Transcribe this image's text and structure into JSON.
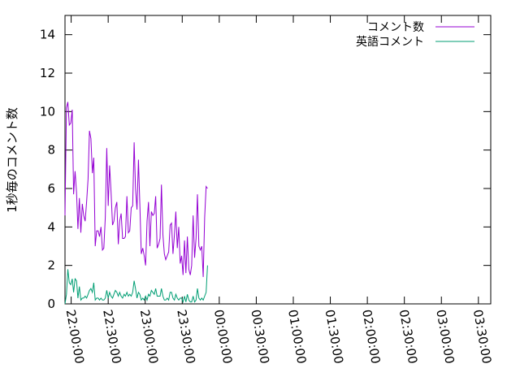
{
  "chart_data": {
    "type": "line",
    "title": "",
    "xlabel": "",
    "ylabel": "1秒毎のコメント数",
    "ylim": [
      0,
      15
    ],
    "yticks": [
      "0",
      "2",
      "4",
      "6",
      "8",
      "10",
      "12",
      "14"
    ],
    "xlim": [
      "21:55:00",
      "03:40:00"
    ],
    "xticks": [
      "22:00:00",
      "22:30:00",
      "23:00:00",
      "23:30:00",
      "00:00:00",
      "00:30:00",
      "01:00:00",
      "01:30:00",
      "02:00:00",
      "02:30:00",
      "03:00:00",
      "03:30:00"
    ],
    "legend_position": "top-right",
    "grid": false,
    "series": [
      {
        "name": "コメント数",
        "color": "#9400d3",
        "points": [
          [
            "21:55:00",
            4.6
          ],
          [
            "21:56:10",
            10.2
          ],
          [
            "21:57:20",
            10.5
          ],
          [
            "21:58:30",
            9.3
          ],
          [
            "21:59:40",
            9.4
          ],
          [
            "22:00:50",
            10.1
          ],
          [
            "22:02:00",
            5.7
          ],
          [
            "22:03:10",
            6.9
          ],
          [
            "22:04:20",
            5.8
          ],
          [
            "22:05:30",
            3.9
          ],
          [
            "22:06:40",
            5.5
          ],
          [
            "22:07:50",
            3.7
          ],
          [
            "22:09:00",
            5.2
          ],
          [
            "22:10:10",
            4.6
          ],
          [
            "22:11:20",
            4.3
          ],
          [
            "22:12:30",
            5.3
          ],
          [
            "22:13:40",
            6.5
          ],
          [
            "22:14:50",
            9.0
          ],
          [
            "22:16:00",
            8.6
          ],
          [
            "22:17:10",
            6.8
          ],
          [
            "22:18:20",
            7.6
          ],
          [
            "22:19:30",
            3.0
          ],
          [
            "22:20:40",
            3.8
          ],
          [
            "22:21:50",
            3.8
          ],
          [
            "22:23:00",
            3.5
          ],
          [
            "22:24:10",
            4.0
          ],
          [
            "22:25:20",
            2.8
          ],
          [
            "22:26:30",
            2.9
          ],
          [
            "22:27:40",
            4.5
          ],
          [
            "22:28:50",
            8.1
          ],
          [
            "22:30:00",
            5.1
          ],
          [
            "22:31:10",
            7.2
          ],
          [
            "22:32:20",
            5.8
          ],
          [
            "22:33:30",
            4.1
          ],
          [
            "22:34:40",
            4.3
          ],
          [
            "22:35:50",
            5.0
          ],
          [
            "22:37:00",
            5.3
          ],
          [
            "22:38:10",
            3.1
          ],
          [
            "22:39:20",
            4.3
          ],
          [
            "22:40:30",
            4.7
          ],
          [
            "22:41:40",
            3.4
          ],
          [
            "22:42:50",
            3.4
          ],
          [
            "22:44:00",
            3.5
          ],
          [
            "22:45:10",
            5.6
          ],
          [
            "22:46:20",
            3.7
          ],
          [
            "22:47:30",
            3.8
          ],
          [
            "22:48:40",
            5.0
          ],
          [
            "22:49:50",
            5.1
          ],
          [
            "22:51:00",
            8.4
          ],
          [
            "22:52:10",
            6.0
          ],
          [
            "22:53:20",
            4.9
          ],
          [
            "22:54:30",
            7.5
          ],
          [
            "22:55:40",
            5.2
          ],
          [
            "22:56:50",
            2.6
          ],
          [
            "22:58:00",
            2.9
          ],
          [
            "22:59:10",
            2.5
          ],
          [
            "23:00:20",
            2.0
          ],
          [
            "23:01:30",
            4.3
          ],
          [
            "23:02:40",
            5.3
          ],
          [
            "23:03:50",
            3.0
          ],
          [
            "23:05:00",
            4.8
          ],
          [
            "23:06:10",
            4.6
          ],
          [
            "23:07:20",
            4.7
          ],
          [
            "23:08:30",
            5.6
          ],
          [
            "23:09:40",
            2.9
          ],
          [
            "23:10:50",
            3.1
          ],
          [
            "23:12:00",
            3.4
          ],
          [
            "23:13:10",
            6.2
          ],
          [
            "23:14:20",
            3.6
          ],
          [
            "23:15:30",
            2.6
          ],
          [
            "23:16:40",
            2.3
          ],
          [
            "23:17:50",
            2.5
          ],
          [
            "23:19:00",
            2.7
          ],
          [
            "23:20:10",
            4.1
          ],
          [
            "23:21:20",
            4.2
          ],
          [
            "23:22:30",
            2.6
          ],
          [
            "23:23:40",
            3.6
          ],
          [
            "23:24:50",
            4.8
          ],
          [
            "23:26:00",
            2.9
          ],
          [
            "23:27:10",
            4.0
          ],
          [
            "23:28:20",
            2.1
          ],
          [
            "23:29:30",
            2.5
          ],
          [
            "23:30:40",
            1.5
          ],
          [
            "23:31:50",
            3.3
          ],
          [
            "23:33:00",
            1.6
          ],
          [
            "23:34:10",
            3.5
          ],
          [
            "23:35:20",
            1.8
          ],
          [
            "23:36:30",
            1.5
          ],
          [
            "23:37:40",
            2.0
          ],
          [
            "23:38:50",
            4.6
          ],
          [
            "23:40:00",
            2.4
          ],
          [
            "23:41:10",
            3.4
          ],
          [
            "23:42:20",
            5.7
          ],
          [
            "23:43:30",
            3.0
          ],
          [
            "23:44:40",
            2.8
          ],
          [
            "23:45:50",
            3.0
          ],
          [
            "23:47:00",
            1.4
          ],
          [
            "23:48:10",
            4.5
          ],
          [
            "23:49:20",
            6.1
          ],
          [
            "23:50:30",
            6.0
          ]
        ]
      },
      {
        "name": "英語コメント",
        "color": "#009e73",
        "points": [
          [
            "21:55:00",
            0.0
          ],
          [
            "21:56:10",
            0.5
          ],
          [
            "21:57:20",
            1.8
          ],
          [
            "21:58:30",
            1.1
          ],
          [
            "21:59:40",
            1.0
          ],
          [
            "22:00:50",
            1.3
          ],
          [
            "22:02:00",
            0.6
          ],
          [
            "22:03:10",
            1.3
          ],
          [
            "22:04:20",
            1.2
          ],
          [
            "22:05:30",
            0.3
          ],
          [
            "22:06:40",
            0.9
          ],
          [
            "22:07:50",
            0.2
          ],
          [
            "22:09:00",
            0.3
          ],
          [
            "22:10:10",
            0.3
          ],
          [
            "22:11:20",
            0.4
          ],
          [
            "22:12:30",
            0.3
          ],
          [
            "22:13:40",
            0.5
          ],
          [
            "22:14:50",
            0.7
          ],
          [
            "22:16:00",
            0.8
          ],
          [
            "22:17:10",
            0.6
          ],
          [
            "22:18:20",
            1.1
          ],
          [
            "22:19:30",
            0.2
          ],
          [
            "22:20:40",
            0.3
          ],
          [
            "22:21:50",
            0.3
          ],
          [
            "22:23:00",
            0.2
          ],
          [
            "22:24:10",
            0.3
          ],
          [
            "22:25:20",
            0.2
          ],
          [
            "22:26:30",
            0.2
          ],
          [
            "22:27:40",
            0.3
          ],
          [
            "22:28:50",
            0.7
          ],
          [
            "22:30:00",
            0.3
          ],
          [
            "22:31:10",
            0.6
          ],
          [
            "22:32:20",
            0.4
          ],
          [
            "22:33:30",
            0.3
          ],
          [
            "22:34:40",
            0.5
          ],
          [
            "22:35:50",
            0.7
          ],
          [
            "22:37:00",
            0.6
          ],
          [
            "22:38:10",
            0.4
          ],
          [
            "22:39:20",
            0.6
          ],
          [
            "22:40:30",
            0.4
          ],
          [
            "22:41:40",
            0.3
          ],
          [
            "22:42:50",
            0.5
          ],
          [
            "22:44:00",
            0.4
          ],
          [
            "22:45:10",
            0.6
          ],
          [
            "22:46:20",
            0.4
          ],
          [
            "22:47:30",
            0.5
          ],
          [
            "22:48:40",
            0.4
          ],
          [
            "22:49:50",
            0.6
          ],
          [
            "22:51:00",
            1.2
          ],
          [
            "22:52:10",
            0.8
          ],
          [
            "22:53:20",
            0.3
          ],
          [
            "22:54:30",
            0.6
          ],
          [
            "22:55:40",
            0.5
          ],
          [
            "22:56:50",
            0.2
          ],
          [
            "22:58:00",
            0.3
          ],
          [
            "22:59:10",
            0.2
          ],
          [
            "23:00:20",
            0.4
          ],
          [
            "23:01:30",
            0.2
          ],
          [
            "23:02:40",
            0.5
          ],
          [
            "23:03:50",
            0.4
          ],
          [
            "23:05:00",
            0.7
          ],
          [
            "23:06:10",
            0.6
          ],
          [
            "23:07:20",
            0.5
          ],
          [
            "23:08:30",
            0.8
          ],
          [
            "23:09:40",
            0.4
          ],
          [
            "23:10:50",
            0.4
          ],
          [
            "23:12:00",
            0.4
          ],
          [
            "23:13:10",
            0.8
          ],
          [
            "23:14:20",
            0.4
          ],
          [
            "23:15:30",
            0.2
          ],
          [
            "23:16:40",
            0.2
          ],
          [
            "23:17:50",
            0.3
          ],
          [
            "23:19:00",
            0.2
          ],
          [
            "23:20:10",
            0.6
          ],
          [
            "23:21:20",
            0.6
          ],
          [
            "23:22:30",
            0.3
          ],
          [
            "23:23:40",
            0.2
          ],
          [
            "23:24:50",
            0.5
          ],
          [
            "23:26:00",
            0.3
          ],
          [
            "23:27:10",
            0.2
          ],
          [
            "23:28:20",
            0.3
          ],
          [
            "23:29:30",
            0.3
          ],
          [
            "23:30:40",
            0.1
          ],
          [
            "23:31:50",
            0.4
          ],
          [
            "23:33:00",
            0.1
          ],
          [
            "23:34:10",
            0.5
          ],
          [
            "23:35:20",
            0.2
          ],
          [
            "23:36:30",
            0.1
          ],
          [
            "23:37:40",
            0.1
          ],
          [
            "23:38:50",
            0.4
          ],
          [
            "23:40:00",
            0.1
          ],
          [
            "23:41:10",
            0.2
          ],
          [
            "23:42:20",
            0.8
          ],
          [
            "23:43:30",
            0.3
          ],
          [
            "23:44:40",
            0.2
          ],
          [
            "23:45:50",
            0.3
          ],
          [
            "23:47:00",
            0.2
          ],
          [
            "23:48:10",
            0.4
          ],
          [
            "23:49:20",
            0.6
          ],
          [
            "23:50:30",
            2.0
          ]
        ]
      }
    ]
  }
}
